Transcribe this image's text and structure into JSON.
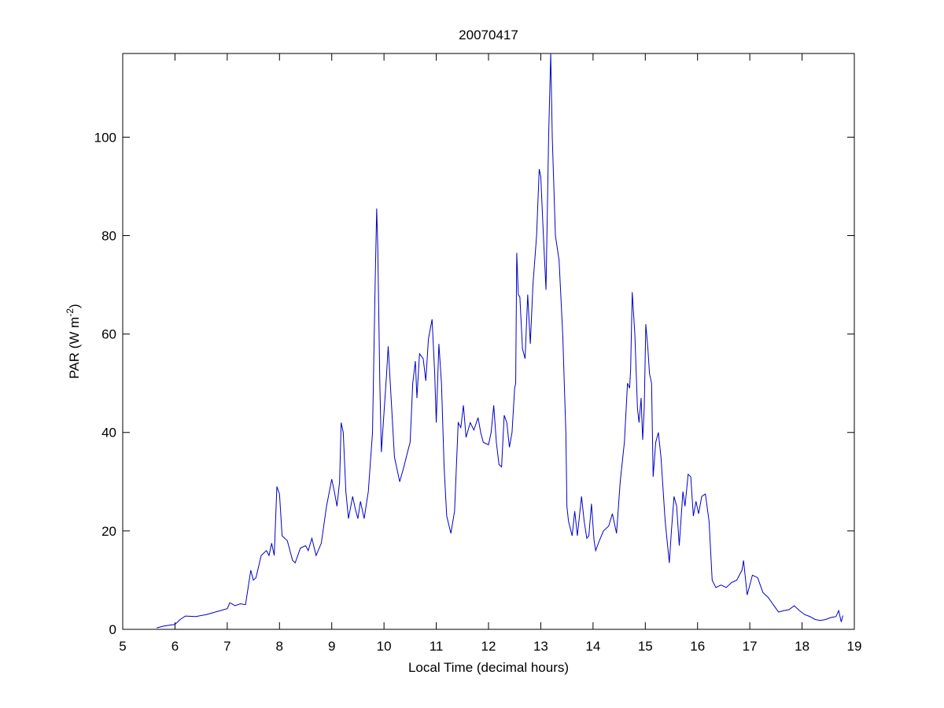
{
  "chart_data": {
    "type": "line",
    "title": "20070417",
    "xlabel": "Local Time (decimal hours)",
    "ylabel": {
      "text": "PAR (W m",
      "superscript": "-2",
      "suffix": ")"
    },
    "xlim": [
      5,
      19
    ],
    "xticks": [
      5,
      6,
      7,
      8,
      9,
      10,
      11,
      12,
      13,
      14,
      15,
      16,
      17,
      18,
      19
    ],
    "ylim": [
      0,
      117
    ],
    "yticks": [
      0,
      20,
      40,
      60,
      80,
      100
    ],
    "grid": false,
    "color": "#0000c8",
    "x": [
      5.65,
      5.8,
      6.0,
      6.1,
      6.2,
      6.4,
      6.6,
      6.8,
      7.0,
      7.05,
      7.15,
      7.25,
      7.35,
      7.45,
      7.5,
      7.55,
      7.65,
      7.75,
      7.8,
      7.85,
      7.9,
      7.95,
      8.0,
      8.05,
      8.15,
      8.25,
      8.3,
      8.4,
      8.5,
      8.55,
      8.62,
      8.7,
      8.8,
      8.9,
      9.0,
      9.05,
      9.1,
      9.15,
      9.18,
      9.22,
      9.27,
      9.32,
      9.4,
      9.45,
      9.5,
      9.55,
      9.62,
      9.7,
      9.78,
      9.83,
      9.86,
      9.88,
      9.92,
      9.95,
      10.0,
      10.05,
      10.08,
      10.12,
      10.2,
      10.3,
      10.38,
      10.45,
      10.5,
      10.55,
      10.6,
      10.63,
      10.68,
      10.75,
      10.8,
      10.85,
      10.92,
      10.97,
      11.0,
      11.05,
      11.1,
      11.15,
      11.2,
      11.28,
      11.35,
      11.42,
      11.47,
      11.52,
      11.57,
      11.65,
      11.72,
      11.8,
      11.85,
      11.9,
      12.0,
      12.05,
      12.1,
      12.15,
      12.2,
      12.25,
      12.3,
      12.35,
      12.4,
      12.45,
      12.5,
      12.52,
      12.54,
      12.57,
      12.6,
      12.65,
      12.7,
      12.75,
      12.8,
      12.85,
      12.92,
      12.97,
      13.0,
      13.05,
      13.1,
      13.15,
      13.19,
      13.22,
      13.28,
      13.35,
      13.42,
      13.48,
      13.5,
      13.53,
      13.6,
      13.65,
      13.7,
      13.78,
      13.83,
      13.88,
      13.92,
      13.97,
      14.02,
      14.05,
      14.12,
      14.2,
      14.3,
      14.37,
      14.45,
      14.52,
      14.6,
      14.66,
      14.7,
      14.72,
      14.75,
      14.8,
      14.85,
      14.88,
      14.92,
      14.95,
      14.98,
      15.01,
      15.05,
      15.08,
      15.12,
      15.15,
      15.2,
      15.25,
      15.3,
      15.38,
      15.46,
      15.5,
      15.55,
      15.6,
      15.65,
      15.72,
      15.76,
      15.82,
      15.87,
      15.92,
      15.97,
      16.02,
      16.08,
      16.15,
      16.22,
      16.28,
      16.35,
      16.45,
      16.55,
      16.65,
      16.75,
      16.85,
      16.88,
      16.95,
      17.05,
      17.15,
      17.25,
      17.35,
      17.45,
      17.55,
      17.65,
      17.75,
      17.85,
      17.95,
      18.05,
      18.15,
      18.25,
      18.35,
      18.45,
      18.55,
      18.65,
      18.7,
      18.75,
      18.78
    ],
    "values": [
      0.3,
      0.7,
      1.0,
      2.0,
      2.7,
      2.6,
      3.0,
      3.6,
      4.2,
      5.4,
      4.8,
      5.2,
      5.0,
      12.0,
      10.0,
      10.5,
      15.0,
      16.0,
      15.0,
      17.5,
      15.0,
      29.0,
      27.5,
      19.0,
      18.0,
      14.0,
      13.5,
      16.5,
      17.0,
      16.0,
      18.5,
      15.0,
      17.5,
      25.0,
      30.5,
      28.0,
      25.0,
      30.0,
      42.0,
      40.0,
      28.0,
      22.5,
      27.0,
      24.5,
      22.5,
      26.0,
      22.5,
      28.0,
      40.0,
      70.0,
      85.5,
      78.0,
      50.0,
      36.0,
      44.0,
      52.0,
      57.5,
      50.0,
      35.0,
      30.0,
      33.0,
      36.0,
      38.0,
      50.0,
      54.5,
      47.0,
      56.0,
      55.0,
      50.5,
      59.0,
      63.0,
      52.0,
      42.0,
      58.0,
      50.0,
      33.0,
      23.0,
      19.5,
      24.0,
      42.0,
      41.0,
      45.5,
      39.0,
      42.0,
      40.5,
      43.0,
      40.0,
      38.0,
      37.5,
      40.0,
      45.5,
      38.0,
      33.5,
      33.0,
      43.5,
      42.0,
      37.0,
      40.0,
      49.0,
      50.0,
      76.5,
      68.0,
      67.5,
      57.0,
      55.0,
      68.0,
      58.0,
      70.0,
      80.0,
      93.5,
      92.0,
      80.0,
      69.0,
      100.0,
      117.0,
      100.0,
      80.0,
      75.0,
      60.0,
      40.0,
      25.0,
      22.0,
      19.0,
      24.0,
      19.0,
      27.0,
      22.0,
      18.5,
      19.0,
      25.5,
      18.0,
      16.0,
      18.0,
      20.0,
      21.0,
      23.5,
      19.5,
      30.0,
      38.0,
      50.0,
      49.0,
      53.0,
      68.5,
      60.0,
      45.0,
      42.0,
      47.0,
      38.5,
      45.0,
      62.0,
      57.0,
      52.0,
      50.0,
      31.0,
      38.0,
      40.0,
      35.0,
      22.0,
      13.5,
      20.0,
      27.0,
      25.0,
      17.0,
      28.0,
      25.0,
      31.5,
      31.0,
      23.0,
      26.0,
      23.5,
      27.0,
      27.5,
      22.0,
      10.0,
      8.5,
      9.0,
      8.5,
      9.5,
      10.0,
      12.0,
      14.0,
      7.0,
      11.0,
      10.5,
      7.5,
      6.5,
      5.0,
      3.5,
      3.8,
      4.0,
      4.8,
      3.8,
      3.0,
      2.6,
      2.0,
      1.8,
      2.0,
      2.4,
      2.6,
      3.8,
      1.5,
      2.8
    ]
  }
}
